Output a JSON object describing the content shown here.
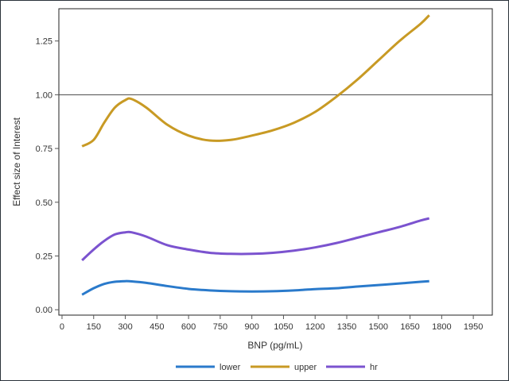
{
  "chart_data": {
    "type": "line",
    "title": "",
    "xlabel": "BNP (pg/mL)",
    "ylabel": "Effect size of Interest",
    "xlim": [
      -15,
      2040
    ],
    "ylim": [
      -0.025,
      1.4
    ],
    "x_ticks": [
      "0",
      "150",
      "300",
      "450",
      "600",
      "750",
      "900",
      "1050",
      "1200",
      "1350",
      "1500",
      "1650",
      "1800",
      "1950"
    ],
    "y_ticks": [
      "0.00",
      "0.25",
      "0.50",
      "0.75",
      "1.00",
      "1.25"
    ],
    "reference_line": 1.0,
    "grid": false,
    "legend_position": "bottom",
    "x": [
      95,
      150,
      200,
      250,
      300,
      330,
      400,
      500,
      600,
      700,
      800,
      900,
      1000,
      1100,
      1200,
      1300,
      1400,
      1500,
      1600,
      1700,
      1741
    ],
    "series": [
      {
        "name": "lower",
        "color": "#2a7acb",
        "values": [
          0.07,
          0.1,
          0.12,
          0.13,
          0.133,
          0.132,
          0.125,
          0.11,
          0.097,
          0.09,
          0.086,
          0.085,
          0.086,
          0.09,
          0.096,
          0.1,
          0.108,
          0.115,
          0.122,
          0.13,
          0.133
        ]
      },
      {
        "name": "upper",
        "color": "#c89a24",
        "values": [
          0.76,
          0.79,
          0.87,
          0.94,
          0.975,
          0.98,
          0.94,
          0.86,
          0.81,
          0.787,
          0.79,
          0.81,
          0.835,
          0.87,
          0.92,
          0.99,
          1.07,
          1.16,
          1.25,
          1.33,
          1.37
        ]
      },
      {
        "name": "hr",
        "color": "#7b53cf",
        "values": [
          0.23,
          0.28,
          0.32,
          0.35,
          0.36,
          0.36,
          0.34,
          0.3,
          0.28,
          0.265,
          0.26,
          0.26,
          0.265,
          0.275,
          0.29,
          0.31,
          0.335,
          0.36,
          0.385,
          0.415,
          0.425
        ]
      }
    ]
  }
}
